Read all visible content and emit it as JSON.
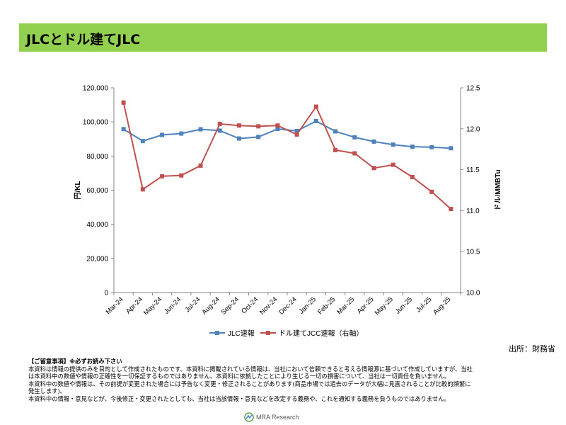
{
  "header": {
    "title": "JLCとドル建てJLC"
  },
  "chart_data": {
    "type": "line",
    "categories": [
      "Mar-24",
      "Apr-24",
      "May-24",
      "Jun-24",
      "Jul-24",
      "Aug-24",
      "Sep-24",
      "Oct-24",
      "Nov-24",
      "Dec-24",
      "Jan-25",
      "Feb-25",
      "Mar-25",
      "Apr-25",
      "May-25",
      "Jun-25",
      "Jul-25",
      "Aug-25"
    ],
    "series": [
      {
        "name": "JLC速報",
        "axis": "left",
        "color": "#4f81bd",
        "marker": "square",
        "values": [
          95800,
          88800,
          92400,
          93200,
          95700,
          94900,
          90300,
          91200,
          95900,
          94700,
          100500,
          94500,
          91000,
          88500,
          86700,
          85500,
          85200,
          84600
        ]
      },
      {
        "name": "ドル建てJCC速報（右軸）",
        "axis": "right",
        "color": "#c0504d",
        "marker": "square",
        "values": [
          12.32,
          11.26,
          11.42,
          11.43,
          11.55,
          12.06,
          12.04,
          12.03,
          12.04,
          11.93,
          12.27,
          11.74,
          11.7,
          11.52,
          11.56,
          11.41,
          11.23,
          11.02
        ]
      }
    ],
    "yleft": {
      "label": "円/KL",
      "ylim": [
        0,
        120000
      ],
      "ticks": [
        "0",
        "20,000",
        "40,000",
        "60,000",
        "80,000",
        "100,000",
        "120,000"
      ]
    },
    "yright": {
      "label": "ドル/MMBTu",
      "ylim": [
        10.0,
        12.5
      ],
      "ticks": [
        "10.0",
        "10.5",
        "11.0",
        "11.5",
        "12.0",
        "12.5"
      ]
    },
    "legend_position": "bottom",
    "grid": false
  },
  "source": "出所：財務省",
  "notice": {
    "heading": "【ご留意事項】※必ずお読み下さい",
    "lines": [
      "本資料は情報の提供のみを目的として作成されたものです。本資料に掲載されている情報は、当社において信頼できると考える情報源に基づいて作成していますが、当社",
      "は本資料中の数値や情報の正確性を一切保証するものではありません。本資料に依拠したことにより生じる一切の損害について、当社は一切責任を負いません。",
      "本資料中の数値や情報は、その前提が変更された場合には予告なく変更・修正されることがあります(商品市場では過去のデータが大幅に見直されることが比較的頻繁に",
      "発生します)。",
      "本資料中の情報・意見などが、今後修正・変更されたとしても、当社は当該情報・意見などを改定する義務や、これを通知する義務を負うものではありません。"
    ]
  },
  "logo": {
    "text": "MRA Research"
  }
}
